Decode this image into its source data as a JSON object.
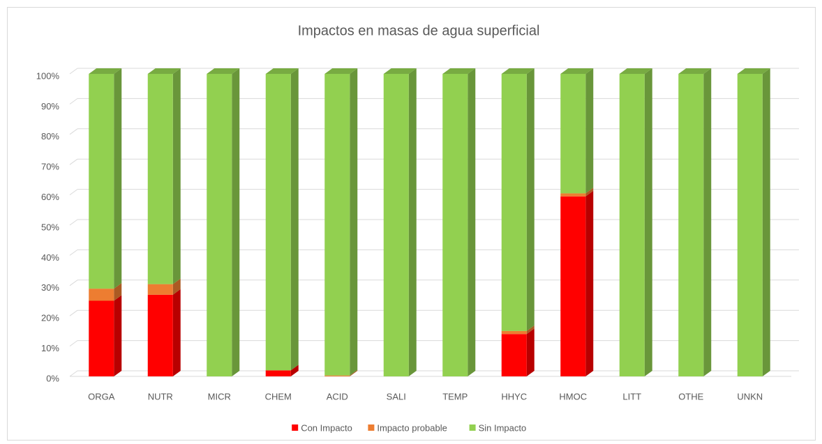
{
  "chart_data": {
    "type": "bar",
    "stacked": true,
    "title": "Impactos en masas de agua superficial",
    "categories": [
      "ORGA",
      "NUTR",
      "MICR",
      "CHEM",
      "ACID",
      "SALI",
      "TEMP",
      "HHYC",
      "HMOC",
      "LITT",
      "OTHE",
      "UNKN"
    ],
    "series": [
      {
        "name": "Con Impacto",
        "color": "#ff0000",
        "values": [
          25,
          27,
          0,
          2,
          0,
          0,
          0,
          14,
          59.5,
          0,
          0,
          0
        ]
      },
      {
        "name": "Impacto probable",
        "color": "#ed7d31",
        "values": [
          4,
          3.5,
          0,
          0,
          0.3,
          0,
          0,
          1,
          1,
          0,
          0,
          0
        ]
      },
      {
        "name": "Sin Impacto",
        "color": "#92d050",
        "values": [
          71,
          69.5,
          100,
          98,
          99.7,
          100,
          100,
          85,
          39.5,
          100,
          100,
          100
        ]
      }
    ],
    "ylim": [
      0,
      100
    ],
    "yticks": [
      {
        "value": 0,
        "label": "0%"
      },
      {
        "value": 10,
        "label": "10%"
      },
      {
        "value": 20,
        "label": "20%"
      },
      {
        "value": 30,
        "label": "30%"
      },
      {
        "value": 40,
        "label": "40%"
      },
      {
        "value": 50,
        "label": "50%"
      },
      {
        "value": 60,
        "label": "60%"
      },
      {
        "value": 70,
        "label": "70%"
      },
      {
        "value": 80,
        "label": "80%"
      },
      {
        "value": 90,
        "label": "90%"
      },
      {
        "value": 100,
        "label": "100%"
      }
    ],
    "grid": true,
    "legend": "bottom"
  }
}
